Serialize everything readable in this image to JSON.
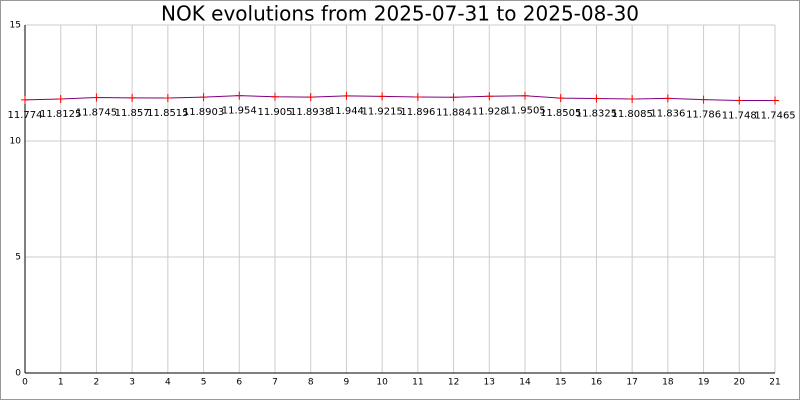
{
  "chart_data": {
    "type": "line",
    "title": "NOK evolutions from 2025-07-31 to 2025-08-30",
    "x": [
      0,
      1,
      2,
      3,
      4,
      5,
      6,
      7,
      8,
      9,
      10,
      11,
      12,
      13,
      14,
      15,
      16,
      17,
      18,
      19,
      20,
      21
    ],
    "series": [
      {
        "color": "#800080",
        "marker_color": "#ff0000",
        "values": [
          11.774,
          11.8125,
          11.8745,
          11.857,
          11.8515,
          11.8903,
          11.954,
          11.905,
          11.8938,
          11.944,
          11.9215,
          11.896,
          11.884,
          11.928,
          11.9505,
          11.8505,
          11.8325,
          11.8085,
          11.836,
          11.786,
          11.748,
          11.7465
        ]
      }
    ],
    "xlim": [
      0,
      21
    ],
    "xticks": [
      0,
      1,
      2,
      3,
      4,
      5,
      6,
      7,
      8,
      9,
      10,
      11,
      12,
      13,
      14,
      15,
      16,
      17,
      18,
      19,
      20,
      21
    ],
    "ylim": [
      0,
      15
    ],
    "yticks": [
      0,
      5,
      10,
      15
    ],
    "grid": true
  }
}
